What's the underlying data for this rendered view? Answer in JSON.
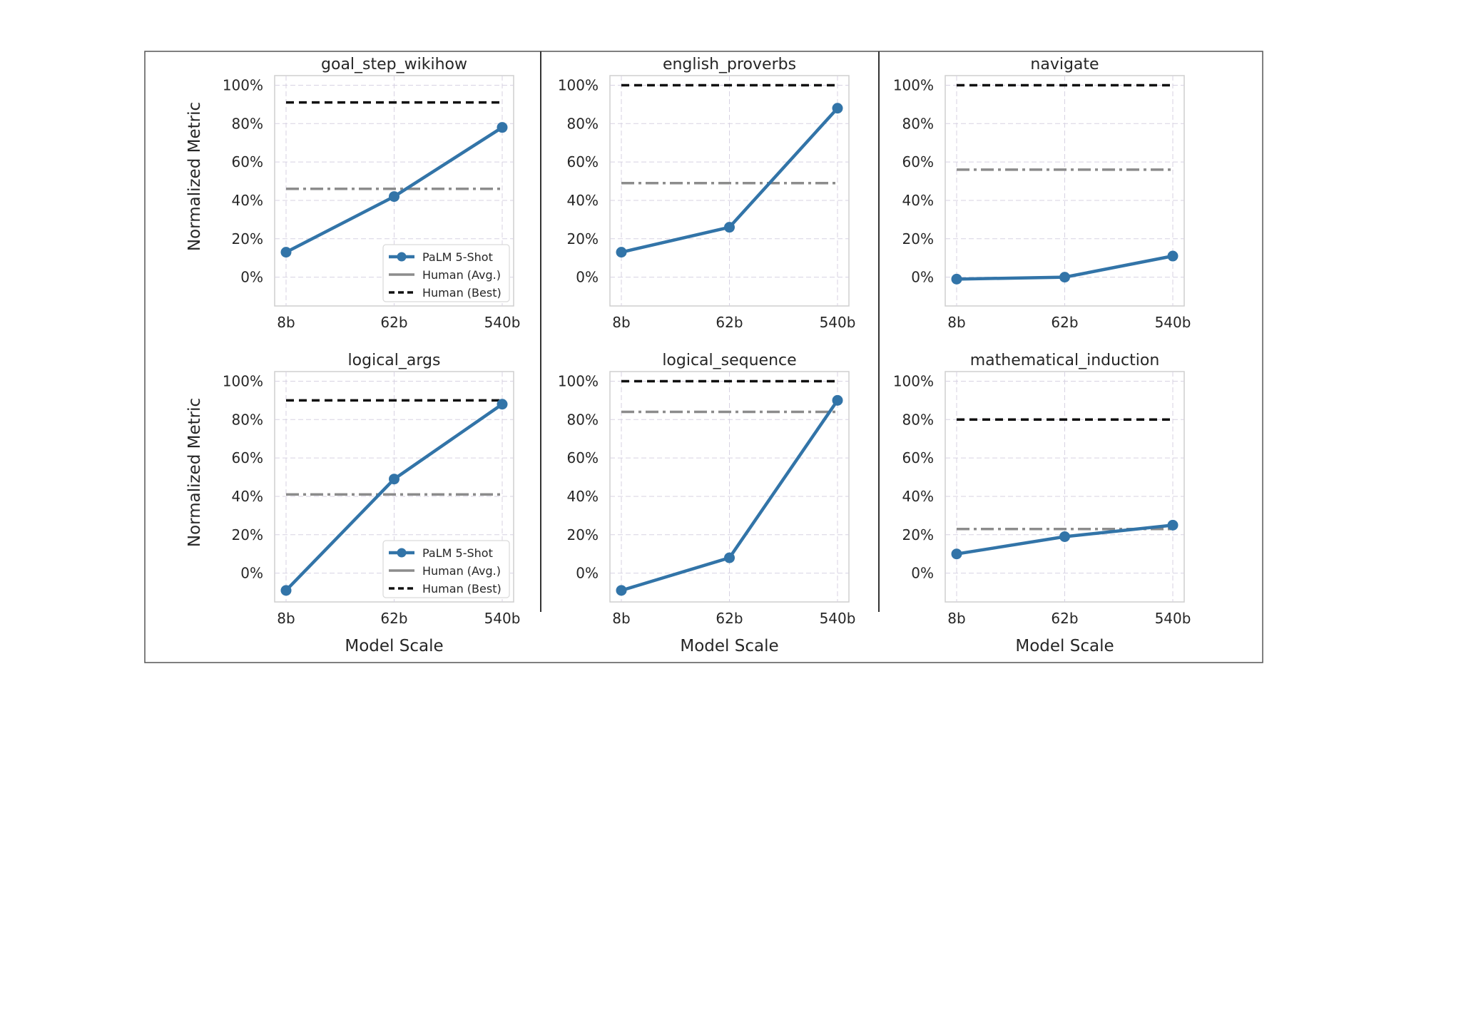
{
  "figure": {
    "x_label": "Model Scale",
    "y_label": "Normalized Metric",
    "y_ticks": [
      "100%",
      "80%",
      "60%",
      "40%",
      "20%",
      "0%"
    ],
    "x_ticks": [
      "8b",
      "62b",
      "540b"
    ],
    "legend": {
      "palm": "PaLM 5-Shot",
      "human_avg": "Human (Avg.)",
      "human_best": "Human (Best)"
    },
    "colors": {
      "palm": "#3274a8",
      "human_avg": "#8c8c8c",
      "human_best": "#111111",
      "grid": "#d7d2e2",
      "frame": "#555555"
    }
  },
  "chart_data": [
    {
      "type": "line",
      "title": "goal_step_wikihow",
      "categories": [
        "8b",
        "62b",
        "540b"
      ],
      "series": [
        {
          "name": "PaLM 5-Shot",
          "values": [
            13,
            42,
            78
          ]
        }
      ],
      "human_avg": 46,
      "human_best": 91,
      "ylim": [
        -15,
        105
      ],
      "ylabel": "Normalized Metric",
      "xlabel": "",
      "legend": "lower right"
    },
    {
      "type": "line",
      "title": "english_proverbs",
      "categories": [
        "8b",
        "62b",
        "540b"
      ],
      "series": [
        {
          "name": "PaLM 5-Shot",
          "values": [
            13,
            26,
            88
          ]
        }
      ],
      "human_avg": 49,
      "human_best": 100,
      "ylim": [
        -15,
        105
      ],
      "ylabel": "",
      "xlabel": ""
    },
    {
      "type": "line",
      "title": "navigate",
      "categories": [
        "8b",
        "62b",
        "540b"
      ],
      "series": [
        {
          "name": "PaLM 5-Shot",
          "values": [
            -1,
            0,
            11
          ]
        }
      ],
      "human_avg": 56,
      "human_best": 100,
      "ylim": [
        -15,
        105
      ],
      "ylabel": "",
      "xlabel": ""
    },
    {
      "type": "line",
      "title": "logical_args",
      "categories": [
        "8b",
        "62b",
        "540b"
      ],
      "series": [
        {
          "name": "PaLM 5-Shot",
          "values": [
            -9,
            49,
            88
          ]
        }
      ],
      "human_avg": 41,
      "human_best": 90,
      "ylim": [
        -15,
        105
      ],
      "ylabel": "Normalized Metric",
      "xlabel": "Model Scale",
      "legend": "lower right"
    },
    {
      "type": "line",
      "title": "logical_sequence",
      "categories": [
        "8b",
        "62b",
        "540b"
      ],
      "series": [
        {
          "name": "PaLM 5-Shot",
          "values": [
            -9,
            8,
            90
          ]
        }
      ],
      "human_avg": 84,
      "human_best": 100,
      "ylim": [
        -15,
        105
      ],
      "ylabel": "",
      "xlabel": "Model Scale"
    },
    {
      "type": "line",
      "title": "mathematical_induction",
      "categories": [
        "8b",
        "62b",
        "540b"
      ],
      "series": [
        {
          "name": "PaLM 5-Shot",
          "values": [
            10,
            19,
            25
          ]
        }
      ],
      "human_avg": 23,
      "human_best": 80,
      "ylim": [
        -15,
        105
      ],
      "ylabel": "",
      "xlabel": "Model Scale"
    }
  ]
}
